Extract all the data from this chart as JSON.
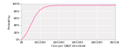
{
  "title": "",
  "xlabel": "Cost per QALY threshold",
  "ylabel": "Probability",
  "xlim": [
    0,
    50000
  ],
  "ylim": [
    0,
    1.0
  ],
  "xticks": [
    0,
    10000,
    20000,
    30000,
    40000,
    50000
  ],
  "xticklabels": [
    "£0",
    "£10,000",
    "£20,000",
    "£30,000",
    "£40,000",
    "£50,000"
  ],
  "yticks": [
    0.0,
    0.2,
    0.4,
    0.6,
    0.8,
    1.0
  ],
  "yticklabels": [
    "0%",
    "20%",
    "40%",
    "60%",
    "80%",
    "100%"
  ],
  "line_color": "#ff69b4",
  "background_color": "#f0eeee",
  "inflection": 5000,
  "steepness": 0.0004,
  "y_max": 0.96
}
